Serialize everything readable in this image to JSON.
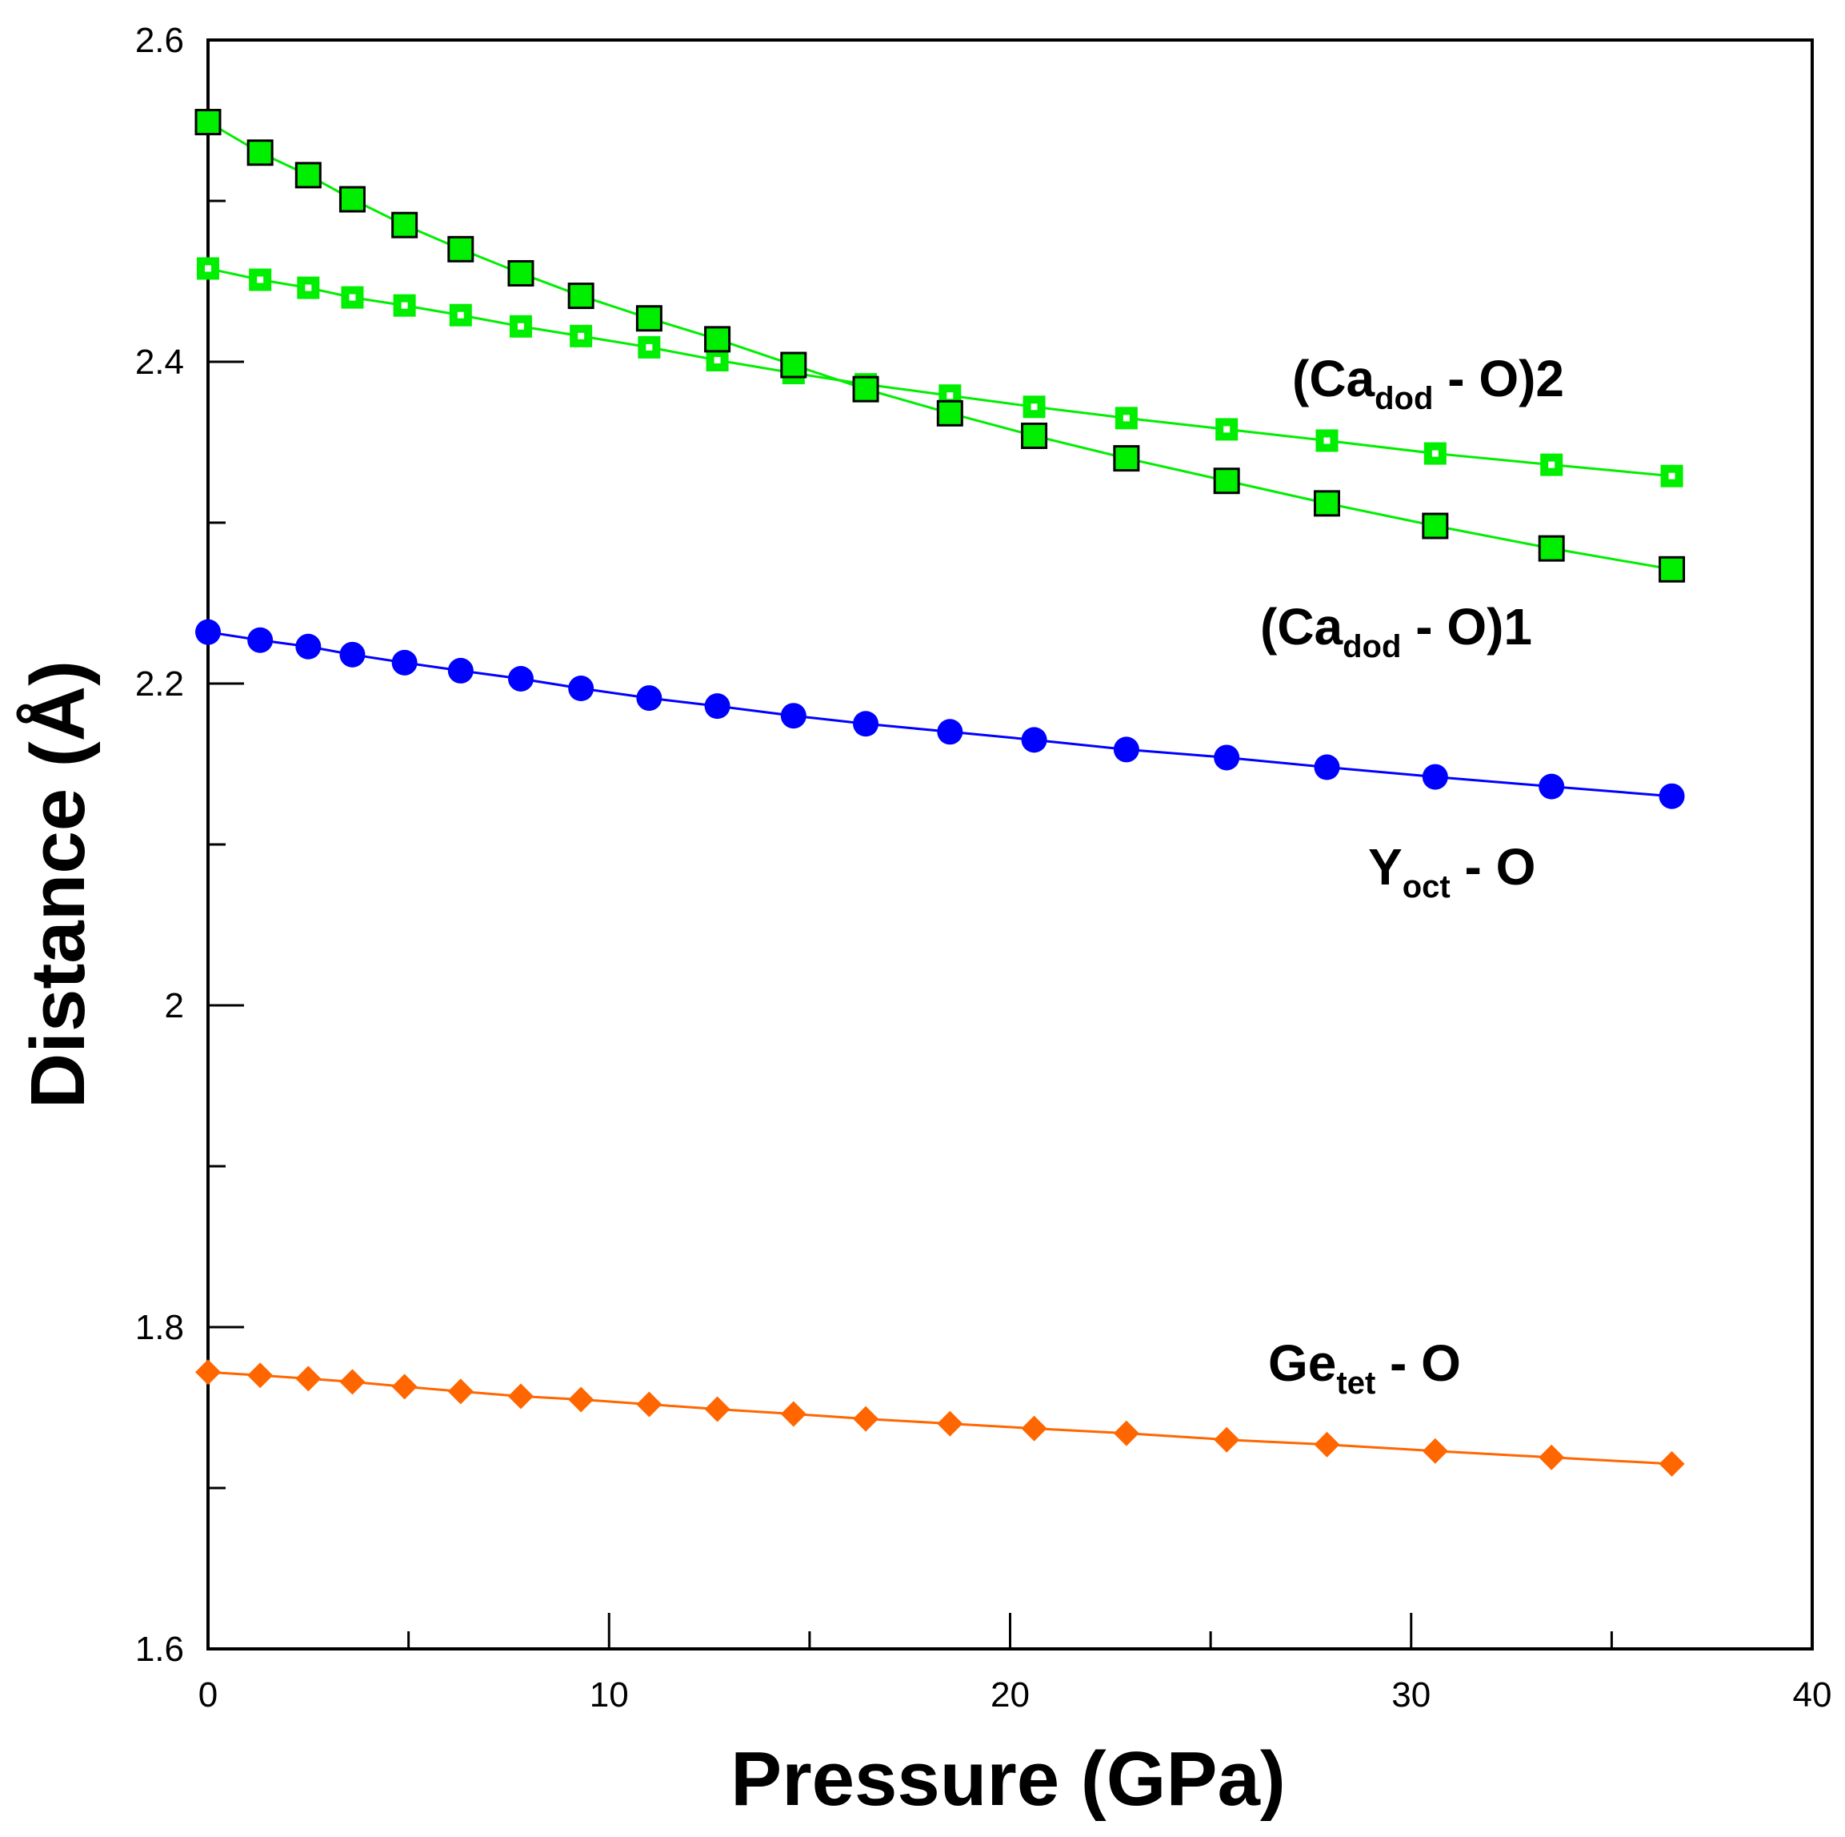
{
  "chart_data": {
    "type": "scatter",
    "title": "",
    "xlabel": "Pressure (GPa)",
    "ylabel": "Distance (Å)",
    "xlim": [
      0,
      40
    ],
    "ylim": [
      1.6,
      2.6
    ],
    "x_ticks": [
      0,
      10,
      20,
      30,
      40
    ],
    "y_ticks": [
      1.6,
      1.8,
      2,
      2.2,
      2.4,
      2.6
    ],
    "x_tick_labels": [
      "0",
      "10",
      "20",
      "30",
      "40"
    ],
    "y_tick_labels": [
      "1.6",
      "1.8",
      "2",
      "2.2",
      "2.4",
      "2.6"
    ],
    "grid": false,
    "x": [
      0,
      1.3,
      2.5,
      3.6,
      4.9,
      6.3,
      7.8,
      9.3,
      11.0,
      12.7,
      14.6,
      16.4,
      18.5,
      20.6,
      22.9,
      25.4,
      27.9,
      30.6,
      33.5,
      36.5
    ],
    "series": [
      {
        "name": "(Ca_dod - O)2",
        "label_main": "(Ca",
        "label_sub": "dod",
        "label_tail": " - O)2",
        "marker": "square-dot",
        "color": "#00ee00",
        "values": [
          2.458,
          2.451,
          2.446,
          2.44,
          2.435,
          2.429,
          2.422,
          2.416,
          2.409,
          2.401,
          2.393,
          2.386,
          2.379,
          2.372,
          2.365,
          2.358,
          2.351,
          2.343,
          2.336,
          2.329
        ]
      },
      {
        "name": "(Ca_dod - O)1",
        "label_main": "(Ca",
        "label_sub": "dod",
        "label_tail": " - O)1",
        "marker": "square",
        "color": "#00ee00",
        "values": [
          2.549,
          2.53,
          2.516,
          2.501,
          2.485,
          2.47,
          2.455,
          2.441,
          2.427,
          2.414,
          2.398,
          2.383,
          2.368,
          2.354,
          2.34,
          2.326,
          2.312,
          2.298,
          2.284,
          2.271
        ]
      },
      {
        "name": "Y_oct - O",
        "label_main": "Y",
        "label_sub": "oct",
        "label_tail": " - O",
        "marker": "circle",
        "color": "#0000ff",
        "values": [
          2.232,
          2.227,
          2.223,
          2.218,
          2.213,
          2.208,
          2.203,
          2.197,
          2.191,
          2.186,
          2.18,
          2.175,
          2.17,
          2.165,
          2.159,
          2.154,
          2.148,
          2.142,
          2.136,
          2.13
        ]
      },
      {
        "name": "Ge_tet - O",
        "label_main": "Ge",
        "label_sub": "tet",
        "label_tail": " - O",
        "marker": "diamond",
        "color": "#ff6600",
        "values": [
          1.772,
          1.77,
          1.768,
          1.766,
          1.763,
          1.76,
          1.757,
          1.755,
          1.752,
          1.749,
          1.746,
          1.743,
          1.74,
          1.737,
          1.734,
          1.73,
          1.727,
          1.723,
          1.719,
          1.715
        ]
      }
    ]
  }
}
